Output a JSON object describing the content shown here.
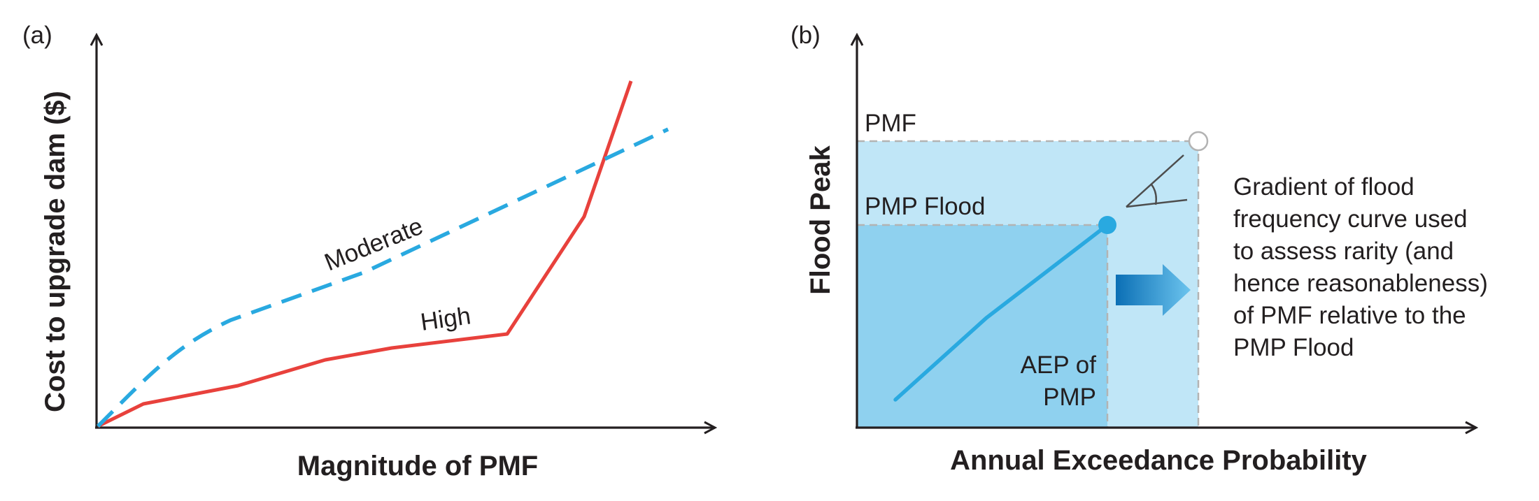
{
  "panel_a": {
    "label": "(a)",
    "ylabel": "Cost to upgrade dam ($)",
    "xlabel": "Magnitude of PMF",
    "series": [
      {
        "name": "Moderate",
        "color": "#29a9e0",
        "style": "dashed"
      },
      {
        "name": "High",
        "color": "#e8413c",
        "style": "solid"
      }
    ]
  },
  "panel_b": {
    "label": "(b)",
    "ylabel": "Flood Peak",
    "xlabel": "Annual Exceedance Probability",
    "pmf_label": "PMF",
    "pmp_flood_label": "PMP Flood",
    "aep_label_line1": "AEP of",
    "aep_label_line2": "PMP",
    "annotation_lines": [
      "Gradient of flood",
      "frequency curve used",
      "to assess rarity (and",
      "hence reasonableness)",
      "of PMF relative to the",
      "PMP Flood"
    ],
    "colors": {
      "outer_region": "#c0e6f7",
      "inner_region": "#8fd1ef",
      "curve": "#29a9e0",
      "arrow_start": "#0b6fb5",
      "arrow_end": "#6cc4ee"
    }
  }
}
